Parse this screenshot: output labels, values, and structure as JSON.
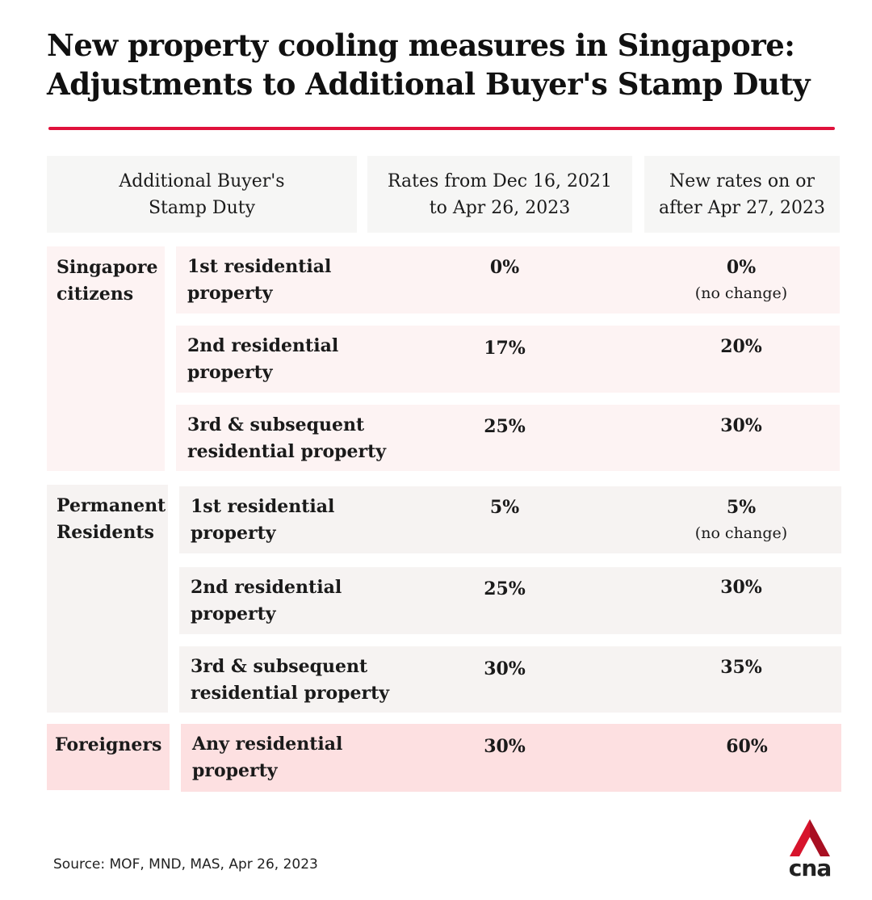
{
  "title_line1": "New property cooling measures in Singapore:",
  "title_line2": "Adjustments to Additional Buyer's Stamp Duty",
  "header": {
    "col1_line1": "Additional Buyer's",
    "col1_line2": "Stamp Duty",
    "col2_line1": "Rates from Dec 16, 2021",
    "col2_line2": "to Apr 26, 2023",
    "col3_line1": "New rates on or",
    "col3_line2": "after Apr 27, 2023"
  },
  "groups": [
    {
      "name_line1": "Singapore",
      "name_line2": "citizens",
      "rows": [
        {
          "label_line1": "1st residential",
          "label_line2": "property",
          "old": "0%",
          "new": "0%",
          "note": "(no change)"
        },
        {
          "label_line1": "2nd residential",
          "label_line2": "property",
          "old": "17%",
          "new": "20%"
        },
        {
          "label_line1": "3rd & subsequent",
          "label_line2": "residential property",
          "old": "25%",
          "new": "30%"
        }
      ]
    },
    {
      "name_line1": "Permanent",
      "name_line2": "Residents",
      "rows": [
        {
          "label_line1": "1st residential",
          "label_line2": "property",
          "old": "5%",
          "new": "5%",
          "note": "(no change)"
        },
        {
          "label_line1": "2nd residential",
          "label_line2": "property",
          "old": "25%",
          "new": "30%"
        },
        {
          "label_line1": "3rd & subsequent",
          "label_line2": "residential property",
          "old": "30%",
          "new": "35%"
        }
      ]
    },
    {
      "name_line1": "Foreigners",
      "rows": [
        {
          "label_line1": "Any residential",
          "label_line2": "property",
          "old": "30%",
          "new": "60%"
        }
      ]
    }
  ],
  "source": "Source: MOF, MND, MAS, Apr 26, 2023",
  "logo": {
    "icon": "cna-logo-icon",
    "text": "cna",
    "color": "#d7142c"
  }
}
